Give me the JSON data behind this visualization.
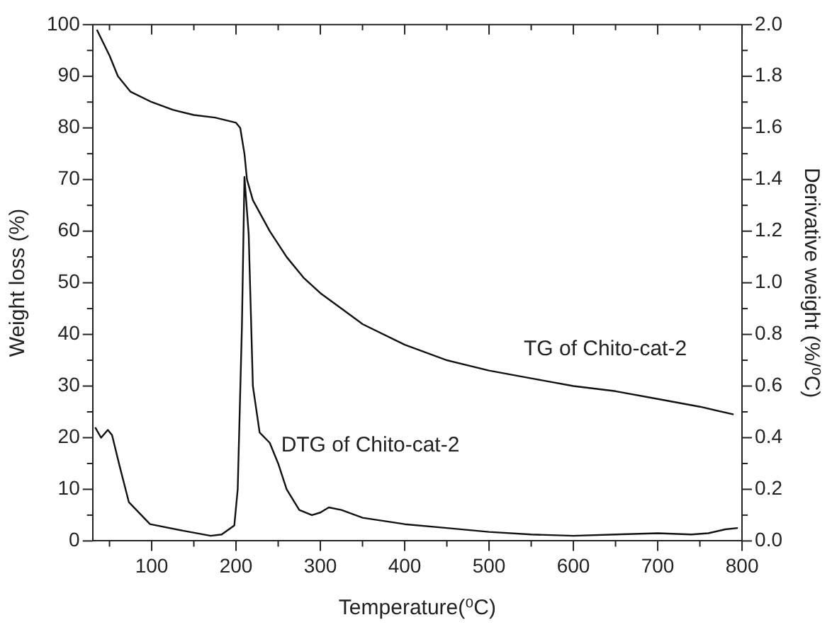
{
  "chart_data": {
    "type": "line",
    "xlabel": "Temperature(⁰C)",
    "ylabel": "Weight loss (%)",
    "y2label": "Derivative weight (%/⁰C)",
    "xlim": [
      30,
      800
    ],
    "xticks": [
      {
        "value": 50,
        "label": null
      },
      100,
      {
        "value": 150,
        "label": null
      },
      200,
      {
        "value": 250,
        "label": null
      },
      300,
      {
        "value": 350,
        "label": null
      },
      400,
      {
        "value": 450,
        "label": null
      },
      500,
      {
        "value": 550,
        "label": null
      },
      600,
      {
        "value": 650,
        "label": null
      },
      700,
      {
        "value": 750,
        "label": null
      },
      800
    ],
    "ylim": [
      0,
      100
    ],
    "yticks": [
      0,
      {
        "value": 5,
        "label": null
      },
      10,
      {
        "value": 15,
        "label": null
      },
      20,
      {
        "value": 25,
        "label": null
      },
      30,
      {
        "value": 35,
        "label": null
      },
      40,
      {
        "value": 45,
        "label": null
      },
      50,
      {
        "value": 55,
        "label": null
      },
      60,
      {
        "value": 65,
        "label": null
      },
      70,
      {
        "value": 75,
        "label": null
      },
      80,
      {
        "value": 85,
        "label": null
      },
      90,
      {
        "value": 95,
        "label": null
      },
      100
    ],
    "y2lim": [
      0,
      2
    ],
    "y2ticks": [
      {
        "value": 0,
        "label": "0.0"
      },
      {
        "value": 0.1,
        "label": null
      },
      0.2,
      {
        "value": 0.3,
        "label": null
      },
      0.4,
      {
        "value": 0.5,
        "label": null
      },
      0.6,
      {
        "value": 0.7,
        "label": null
      },
      0.8,
      {
        "value": 0.9,
        "label": null
      },
      {
        "value": 1,
        "label": "1.0"
      },
      {
        "value": 1.1,
        "label": null
      },
      1.2,
      {
        "value": 1.3,
        "label": null
      },
      1.4,
      {
        "value": 1.5,
        "label": null
      },
      1.6,
      {
        "value": 1.7,
        "label": null
      },
      1.8,
      {
        "value": 1.9,
        "label": null
      },
      {
        "value": 2,
        "label": "2.0"
      }
    ],
    "grid": false,
    "legend": false,
    "marker": "none",
    "line_style": "solid",
    "series": [
      {
        "name": "TG of Chito-cat-2",
        "color": "#111111",
        "x": [
          35,
          50,
          60,
          75,
          100,
          125,
          150,
          175,
          200,
          205,
          210,
          213,
          220,
          240,
          260,
          280,
          300,
          325,
          350,
          400,
          450,
          500,
          550,
          600,
          650,
          700,
          750,
          790
        ],
        "values": [
          99,
          94,
          90,
          87,
          85,
          83.5,
          82.5,
          82,
          81,
          80,
          75,
          70,
          66,
          60,
          55,
          51,
          48,
          45,
          42,
          38,
          35,
          33,
          31.5,
          30,
          29,
          27.5,
          26,
          24.5
        ]
      },
      {
        "name": "DTG of Chito-cat-2",
        "color": "#111111",
        "axis": "y2",
        "x": [
          33,
          40,
          48,
          53,
          62,
          73,
          98,
          137,
          170,
          183,
          198,
          202,
          207,
          210,
          215,
          220,
          228,
          240,
          250,
          260,
          275,
          290,
          300,
          310,
          325,
          350,
          400,
          450,
          500,
          550,
          600,
          650,
          700,
          740,
          760,
          780,
          795
        ],
        "values": [
          0.44,
          0.4,
          0.43,
          0.41,
          0.29,
          0.15,
          0.065,
          0.04,
          0.02,
          0.025,
          0.06,
          0.2,
          0.83,
          1.41,
          1.19,
          0.6,
          0.42,
          0.38,
          0.3,
          0.2,
          0.12,
          0.1,
          0.11,
          0.13,
          0.12,
          0.09,
          0.065,
          0.05,
          0.035,
          0.025,
          0.02,
          0.025,
          0.03,
          0.025,
          0.03,
          0.045,
          0.05
        ]
      }
    ]
  }
}
